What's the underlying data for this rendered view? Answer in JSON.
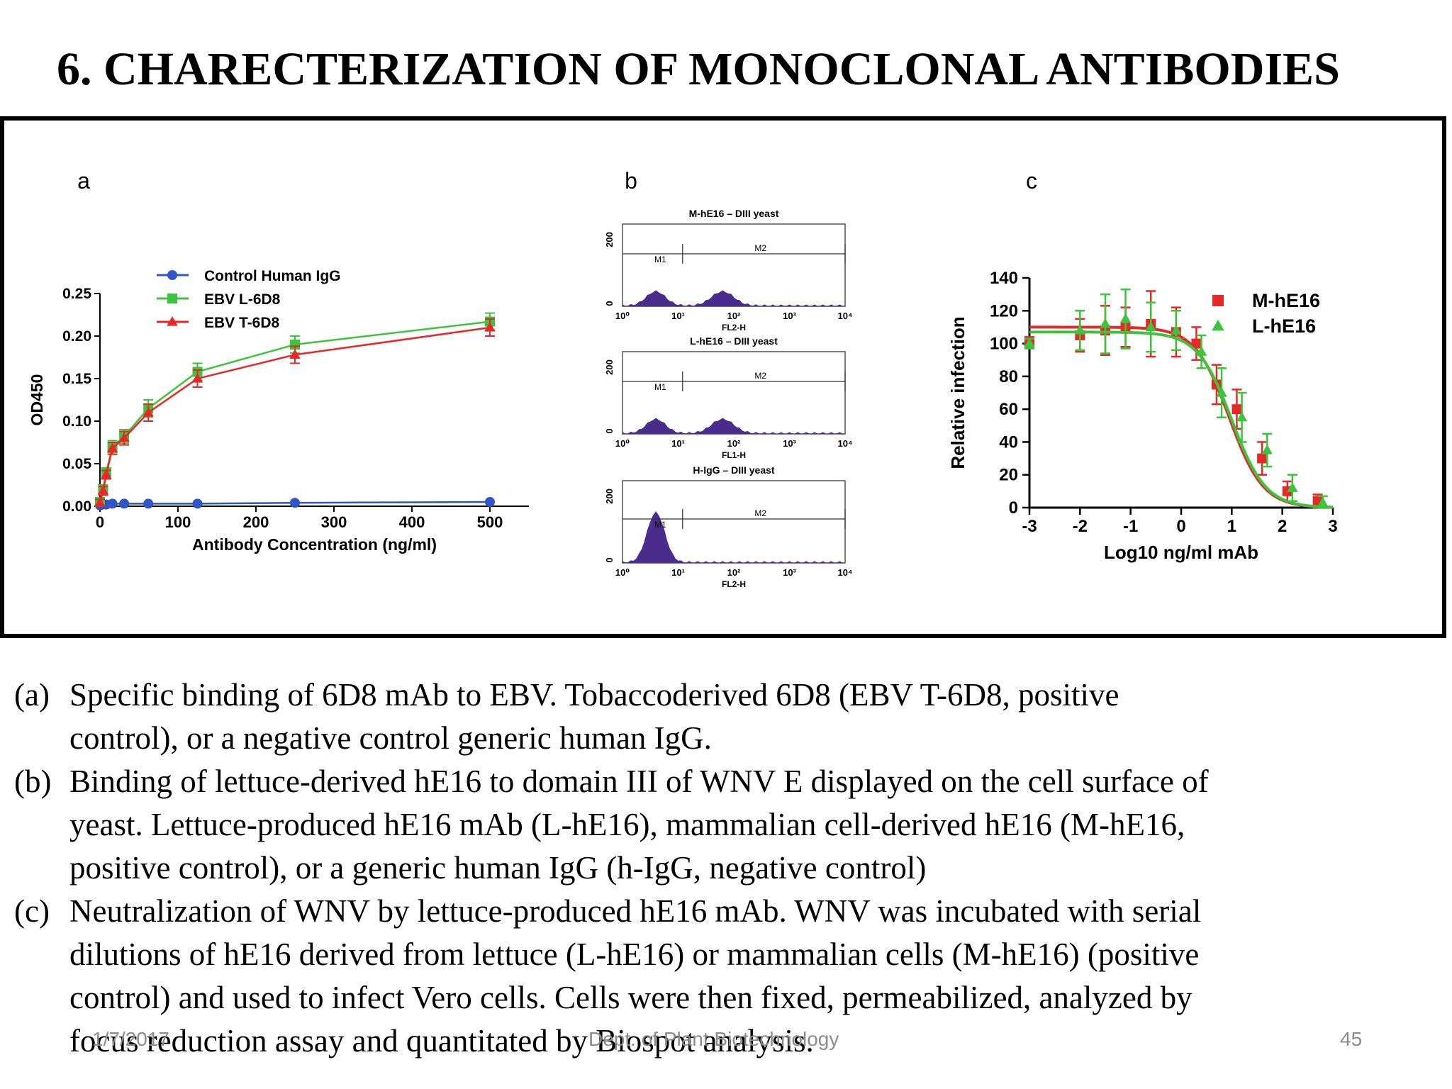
{
  "title": "6. CHARECTERIZATION OF MONOCLONAL ANTIBODIES",
  "chart_data": [
    {
      "panel": "a",
      "type": "line",
      "xlabel": "Antibody Concentration (ng/ml)",
      "ylabel": "OD450",
      "xlim": [
        0,
        550
      ],
      "ylim": [
        0,
        0.25
      ],
      "x_ticks": [
        "0",
        "100",
        "200",
        "300",
        "400",
        "500"
      ],
      "y_ticks": [
        "0.00",
        "0.05",
        "0.10",
        "0.15",
        "0.20",
        "0.25"
      ],
      "legend_position": "top-left",
      "series": [
        {
          "name": "Control Human IgG",
          "color": "#2f55c7",
          "marker": "circle",
          "x": [
            0,
            4,
            8,
            16,
            31,
            62,
            125,
            250,
            500
          ],
          "y": [
            0.001,
            0.002,
            0.002,
            0.003,
            0.003,
            0.003,
            0.003,
            0.004,
            0.005
          ]
        },
        {
          "name": "EBV L-6D8",
          "color": "#3cc43c",
          "marker": "square",
          "x": [
            0,
            4,
            8,
            16,
            31,
            62,
            125,
            250,
            500
          ],
          "y": [
            0.005,
            0.02,
            0.04,
            0.07,
            0.082,
            0.115,
            0.158,
            0.19,
            0.217
          ],
          "err": [
            0.004,
            0.005,
            0.005,
            0.007,
            0.008,
            0.01,
            0.01,
            0.01,
            0.01
          ]
        },
        {
          "name": "EBV T-6D8",
          "color": "#e62828",
          "marker": "triangle",
          "x": [
            0,
            4,
            8,
            16,
            31,
            62,
            125,
            250,
            500
          ],
          "y": [
            0.004,
            0.018,
            0.037,
            0.068,
            0.08,
            0.11,
            0.15,
            0.178,
            0.21
          ],
          "err": [
            0.004,
            0.005,
            0.005,
            0.007,
            0.008,
            0.01,
            0.01,
            0.01,
            0.01
          ]
        }
      ]
    },
    {
      "panel": "b",
      "type": "histogram",
      "xlabel_ticks": [
        "10⁰",
        "10¹",
        "10²",
        "10³",
        "10⁴"
      ],
      "y_tick_max": "200",
      "y_tick_min": "0",
      "gates": [
        "M1",
        "M2"
      ],
      "color": "#4a2c8c",
      "plots": [
        {
          "title": "M-hE16 – DIII yeast",
          "xlabel": "FL2-H",
          "shape": "bimodal"
        },
        {
          "title": "L-hE16 – DIII yeast",
          "xlabel": "FL1-H",
          "shape": "bimodal"
        },
        {
          "title": "H-IgG – DIII yeast",
          "xlabel": "FL2-H",
          "shape": "single"
        }
      ]
    },
    {
      "panel": "c",
      "type": "line",
      "xlabel": "Log10 ng/ml mAb",
      "ylabel": "Relative infection",
      "xlim": [
        -3,
        3
      ],
      "ylim": [
        0,
        140
      ],
      "x_ticks": [
        "-3",
        "-2",
        "-1",
        "0",
        "1",
        "2",
        "3"
      ],
      "y_ticks": [
        "0",
        "20",
        "40",
        "60",
        "80",
        "100",
        "120",
        "140"
      ],
      "legend_position": "top-right",
      "series": [
        {
          "name": "M-hE16",
          "color": "#e62828",
          "marker": "square",
          "x": [
            -3,
            -2,
            -1.5,
            -1.1,
            -0.6,
            -0.1,
            0.3,
            0.7,
            1.1,
            1.6,
            2.1,
            2.7
          ],
          "y": [
            101,
            105,
            108,
            110,
            112,
            107,
            100,
            75,
            60,
            30,
            10,
            4
          ],
          "err": [
            3,
            10,
            15,
            12,
            20,
            15,
            10,
            12,
            12,
            10,
            6,
            4
          ]
        },
        {
          "name": "L-hE16",
          "color": "#3cc43c",
          "marker": "triangle",
          "x": [
            -3,
            -2,
            -1.5,
            -1.1,
            -0.6,
            -0.1,
            0.4,
            0.8,
            1.2,
            1.7,
            2.2,
            2.8
          ],
          "y": [
            100,
            108,
            112,
            115,
            110,
            108,
            95,
            70,
            55,
            35,
            12,
            3
          ],
          "err": [
            3,
            12,
            18,
            18,
            15,
            12,
            10,
            15,
            15,
            10,
            8,
            4
          ]
        }
      ]
    }
  ],
  "captions": [
    {
      "label": "(a)",
      "lines": [
        "Specific binding of 6D8 mAb to EBV. Tobaccoderived 6D8 (EBV T-6D8, positive",
        "control), or a negative control generic human IgG."
      ]
    },
    {
      "label": "(b)",
      "lines": [
        "Binding of lettuce-derived hE16 to domain III of WNV E displayed on the cell surface of",
        "yeast. Lettuce-produced hE16 mAb (L-hE16), mammalian cell-derived hE16 (M-hE16,",
        "positive control), or a generic human IgG (h-IgG, negative control)"
      ]
    },
    {
      "label": "(c)",
      "lines": [
        "Neutralization of WNV by lettuce-produced hE16 mAb. WNV  was incubated with serial",
        "dilutions of hE16 derived from lettuce (L-hE16) or mammalian cells (M-hE16) (positive",
        "control) and used to infect Vero cells. Cells were then fixed, permeabilized, analyzed by",
        "focus reduction assay and quantitated by Biospot analysis."
      ]
    }
  ],
  "footer": {
    "date": "1/7/2017",
    "department": "Dept. of Plant Biotechnology",
    "page": "45"
  }
}
